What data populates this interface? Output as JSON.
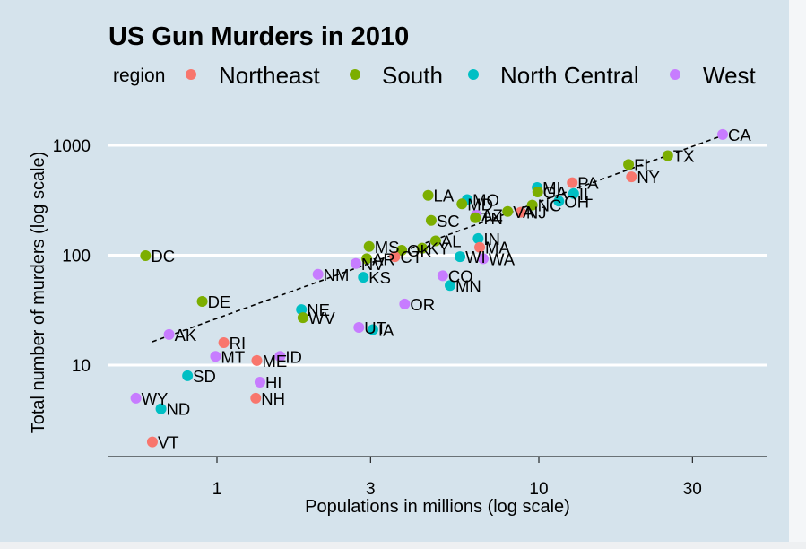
{
  "chart_data": {
    "type": "scatter",
    "title": "US Gun Murders in 2010",
    "xlabel": "Populations in millions (log scale)",
    "ylabel": "Total number of murders (log scale)",
    "x_scale": "log",
    "y_scale": "log",
    "xlim": [
      0.5,
      45
    ],
    "ylim": [
      1.5,
      2000
    ],
    "x_ticks": [
      1,
      3,
      10,
      30
    ],
    "x_tick_labels": [
      "1",
      "3",
      "10",
      "30"
    ],
    "y_ticks": [
      10,
      100,
      1000
    ],
    "y_tick_labels": [
      "10",
      "100",
      "1000"
    ],
    "grid": true,
    "legend": {
      "title": "region",
      "position": "top",
      "entries": [
        {
          "label": "Northeast",
          "color": "#f8766d"
        },
        {
          "label": "South",
          "color": "#7cae00"
        },
        {
          "label": "North Central",
          "color": "#00bfc4"
        },
        {
          "label": "West",
          "color": "#c77cff"
        }
      ]
    },
    "trend_line": {
      "style": "dashed",
      "x_range": [
        0.63,
        37
      ],
      "y_at_start": 16.3,
      "y_at_end": 1220
    },
    "points": [
      {
        "label": "CA",
        "x": 37.25,
        "y": 1257,
        "region": "West"
      },
      {
        "label": "TX",
        "x": 25.15,
        "y": 805,
        "region": "South"
      },
      {
        "label": "FL",
        "x": 19.0,
        "y": 669,
        "region": "South"
      },
      {
        "label": "NY",
        "x": 19.4,
        "y": 517,
        "region": "Northeast"
      },
      {
        "label": "PA",
        "x": 12.7,
        "y": 457,
        "region": "Northeast"
      },
      {
        "label": "MI",
        "x": 9.88,
        "y": 413,
        "region": "North Central"
      },
      {
        "label": "GA",
        "x": 9.92,
        "y": 376,
        "region": "South"
      },
      {
        "label": "IL",
        "x": 12.83,
        "y": 364,
        "region": "North Central"
      },
      {
        "label": "OH",
        "x": 11.54,
        "y": 310,
        "region": "North Central"
      },
      {
        "label": "NC",
        "x": 9.54,
        "y": 286,
        "region": "South"
      },
      {
        "label": "LA",
        "x": 4.53,
        "y": 351,
        "region": "South"
      },
      {
        "label": "MO",
        "x": 5.99,
        "y": 321,
        "region": "North Central"
      },
      {
        "label": "MD",
        "x": 5.77,
        "y": 293,
        "region": "South"
      },
      {
        "label": "VA",
        "x": 8.0,
        "y": 250,
        "region": "South"
      },
      {
        "label": "NJ",
        "x": 8.79,
        "y": 246,
        "region": "Northeast"
      },
      {
        "label": "AZ",
        "x": 6.39,
        "y": 232,
        "region": "West"
      },
      {
        "label": "TN",
        "x": 6.35,
        "y": 219,
        "region": "South"
      },
      {
        "label": "SC",
        "x": 4.63,
        "y": 207,
        "region": "South"
      },
      {
        "label": "IN",
        "x": 6.48,
        "y": 142,
        "region": "North Central"
      },
      {
        "label": "AL",
        "x": 4.78,
        "y": 135,
        "region": "South"
      },
      {
        "label": "MA",
        "x": 6.55,
        "y": 118,
        "region": "Northeast"
      },
      {
        "label": "KY",
        "x": 4.34,
        "y": 116,
        "region": "South"
      },
      {
        "label": "MS",
        "x": 2.97,
        "y": 120,
        "region": "South"
      },
      {
        "label": "OK",
        "x": 3.75,
        "y": 111,
        "region": "South"
      },
      {
        "label": "CT",
        "x": 3.57,
        "y": 97,
        "region": "Northeast"
      },
      {
        "label": "AR",
        "x": 2.92,
        "y": 93,
        "region": "South"
      },
      {
        "label": "WI",
        "x": 5.69,
        "y": 97,
        "region": "North Central"
      },
      {
        "label": "WA",
        "x": 6.72,
        "y": 93,
        "region": "West"
      },
      {
        "label": "NV",
        "x": 2.7,
        "y": 84,
        "region": "West"
      },
      {
        "label": "NM",
        "x": 2.06,
        "y": 67,
        "region": "West"
      },
      {
        "label": "KS",
        "x": 2.85,
        "y": 63,
        "region": "North Central"
      },
      {
        "label": "CO",
        "x": 5.03,
        "y": 65,
        "region": "West"
      },
      {
        "label": "MN",
        "x": 5.3,
        "y": 53,
        "region": "North Central"
      },
      {
        "label": "OR",
        "x": 3.83,
        "y": 36,
        "region": "West"
      },
      {
        "label": "DC",
        "x": 0.6,
        "y": 99,
        "region": "South"
      },
      {
        "label": "DE",
        "x": 0.9,
        "y": 38,
        "region": "South"
      },
      {
        "label": "NE",
        "x": 1.83,
        "y": 32,
        "region": "North Central"
      },
      {
        "label": "WV",
        "x": 1.85,
        "y": 27,
        "region": "South"
      },
      {
        "label": "UT",
        "x": 2.76,
        "y": 22,
        "region": "West"
      },
      {
        "label": "IA",
        "x": 3.05,
        "y": 21,
        "region": "North Central"
      },
      {
        "label": "AK",
        "x": 0.71,
        "y": 19,
        "region": "West"
      },
      {
        "label": "RI",
        "x": 1.05,
        "y": 16,
        "region": "Northeast"
      },
      {
        "label": "MT",
        "x": 0.99,
        "y": 12,
        "region": "West"
      },
      {
        "label": "ID",
        "x": 1.57,
        "y": 12,
        "region": "West"
      },
      {
        "label": "ME",
        "x": 1.33,
        "y": 11,
        "region": "Northeast"
      },
      {
        "label": "SD",
        "x": 0.81,
        "y": 8,
        "region": "North Central"
      },
      {
        "label": "HI",
        "x": 1.36,
        "y": 7,
        "region": "West"
      },
      {
        "label": "WY",
        "x": 0.56,
        "y": 5,
        "region": "West"
      },
      {
        "label": "NH",
        "x": 1.32,
        "y": 5,
        "region": "Northeast"
      },
      {
        "label": "ND",
        "x": 0.67,
        "y": 4,
        "region": "North Central"
      },
      {
        "label": "VT",
        "x": 0.63,
        "y": 2,
        "region": "Northeast"
      }
    ]
  }
}
